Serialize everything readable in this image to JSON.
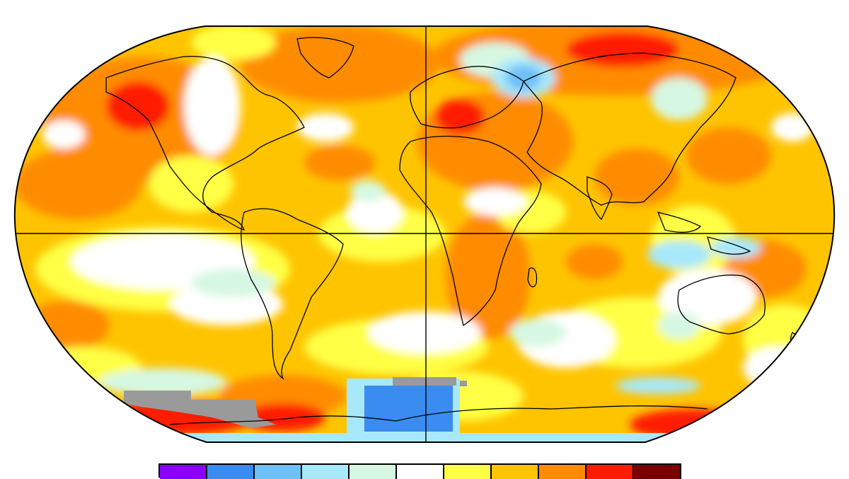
{
  "map": {
    "projection": "robinson-like",
    "description_colors": {
      "land_outline": "#000000",
      "grid_line": "#000000",
      "missing_data": "#9a9a9a"
    }
  },
  "legend": {
    "swatches": [
      {
        "name": "bin-1",
        "color": "#8b00ff"
      },
      {
        "name": "bin-2",
        "color": "#3a8cf0"
      },
      {
        "name": "bin-3",
        "color": "#6ec0f7"
      },
      {
        "name": "bin-4",
        "color": "#a8e8fb"
      },
      {
        "name": "bin-5",
        "color": "#d6f8e2"
      },
      {
        "name": "bin-6",
        "color": "#ffffff"
      },
      {
        "name": "bin-7",
        "color": "#ffff44"
      },
      {
        "name": "bin-8",
        "color": "#ffc400"
      },
      {
        "name": "bin-9",
        "color": "#ff8c00"
      },
      {
        "name": "bin-10",
        "color": "#ff1a00"
      },
      {
        "name": "bin-11",
        "color": "#7a0000"
      }
    ]
  }
}
